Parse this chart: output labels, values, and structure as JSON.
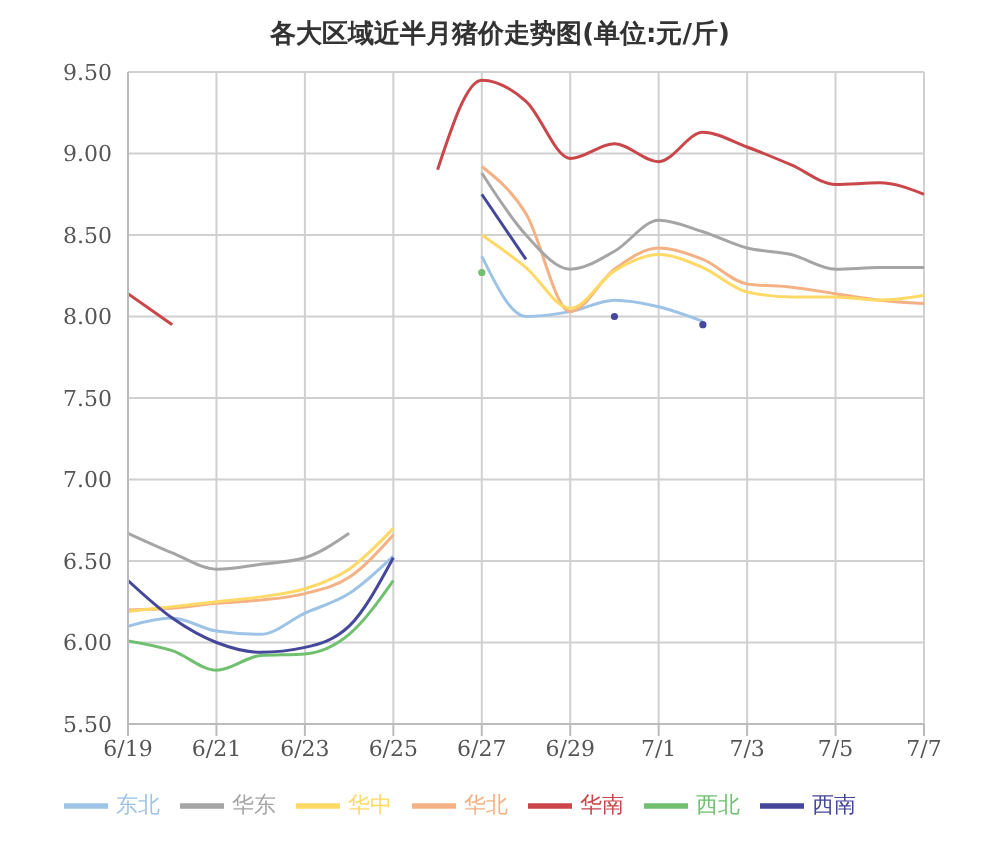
{
  "chart_data": {
    "type": "line",
    "title": "各大区域近半月猪价走势图(单位:元/斤)",
    "x": [
      "--06-19",
      "--06-20",
      "--06-21",
      "--06-22",
      "--06-23",
      "--06-24",
      "--06-25",
      "--06-26",
      "--06-27",
      "--06-28",
      "--06-29",
      "--06-30",
      "--07-01",
      "--07-02",
      "--07-03",
      "--07-04",
      "--07-05",
      "--07-06",
      "--07-07"
    ],
    "series": [
      {
        "name": "东北",
        "color": "#9dc3e6",
        "values": [
          6.1,
          6.15,
          6.07,
          6.05,
          6.18,
          6.3,
          6.53,
          null,
          8.37,
          8.0,
          8.03,
          8.1,
          8.06,
          7.97,
          null,
          null,
          null,
          null,
          null
        ]
      },
      {
        "name": "华北",
        "color": "#f4b183",
        "values": [
          6.2,
          6.21,
          6.24,
          6.26,
          6.3,
          6.4,
          6.66,
          null,
          8.92,
          8.63,
          8.03,
          8.29,
          8.42,
          8.35,
          8.2,
          8.18,
          8.14,
          8.1,
          8.08
        ]
      },
      {
        "name": "华东",
        "color": "#a5a5a5",
        "values": [
          6.67,
          6.55,
          6.45,
          6.48,
          6.52,
          6.67,
          null,
          null,
          8.88,
          8.5,
          8.29,
          8.4,
          8.59,
          8.52,
          8.42,
          8.38,
          8.29,
          8.3,
          8.3
        ]
      },
      {
        "name": "华中",
        "color": "#ffd966",
        "values": [
          6.19,
          6.22,
          6.25,
          6.28,
          6.33,
          6.45,
          6.7,
          null,
          8.5,
          8.3,
          8.05,
          8.28,
          8.38,
          8.3,
          8.15,
          8.12,
          8.12,
          8.1,
          8.13
        ]
      },
      {
        "name": "华南",
        "color": "#c9474a",
        "values": [
          8.14,
          7.95,
          null,
          null,
          null,
          null,
          null,
          8.9,
          9.45,
          9.32,
          8.97,
          9.06,
          8.95,
          9.13,
          9.04,
          8.93,
          8.81,
          8.82,
          8.75
        ]
      },
      {
        "name": "西北",
        "color": "#70c070",
        "values": [
          6.01,
          5.95,
          5.83,
          5.92,
          5.93,
          6.05,
          6.38,
          null,
          8.27,
          null,
          null,
          null,
          null,
          null,
          null,
          null,
          null,
          null,
          null
        ]
      },
      {
        "name": "西南",
        "color": "#44479a",
        "values": [
          6.38,
          6.15,
          6.0,
          5.94,
          5.97,
          6.1,
          6.52,
          null,
          8.75,
          8.35,
          null,
          8.0,
          null,
          7.95,
          null,
          null,
          null,
          null,
          null
        ]
      }
    ],
    "xlim": [
      "--06-19",
      "--07-07"
    ],
    "xticks": [
      {
        "value": "--06-19",
        "label": "6/19"
      },
      {
        "value": "--06-21",
        "label": "6/21"
      },
      {
        "value": "--06-23",
        "label": "6/23"
      },
      {
        "value": "--06-25",
        "label": "6/25"
      },
      {
        "value": "--06-27",
        "label": "6/27"
      },
      {
        "value": "--06-29",
        "label": "6/29"
      },
      {
        "value": "--07-01",
        "label": "7/1"
      },
      {
        "value": "--07-03",
        "label": "7/3"
      },
      {
        "value": "--07-05",
        "label": "7/5"
      },
      {
        "value": "--07-07",
        "label": "7/7"
      }
    ],
    "ylim": [
      5.5,
      9.5
    ],
    "yticks": [
      {
        "value": 5.5,
        "label": "5.50"
      },
      {
        "value": 6,
        "label": "6.00"
      },
      {
        "value": 6.5,
        "label": "6.50"
      },
      {
        "value": 7,
        "label": "7.00"
      },
      {
        "value": 7.5,
        "label": "7.50"
      },
      {
        "value": 8,
        "label": "8.00"
      },
      {
        "value": 8.5,
        "label": "8.50"
      },
      {
        "value": 9,
        "label": "9.00"
      },
      {
        "value": 9.5,
        "label": "9.50"
      }
    ],
    "grid": true,
    "legend": "bottom",
    "marker": "none",
    "line_style": "solid"
  }
}
